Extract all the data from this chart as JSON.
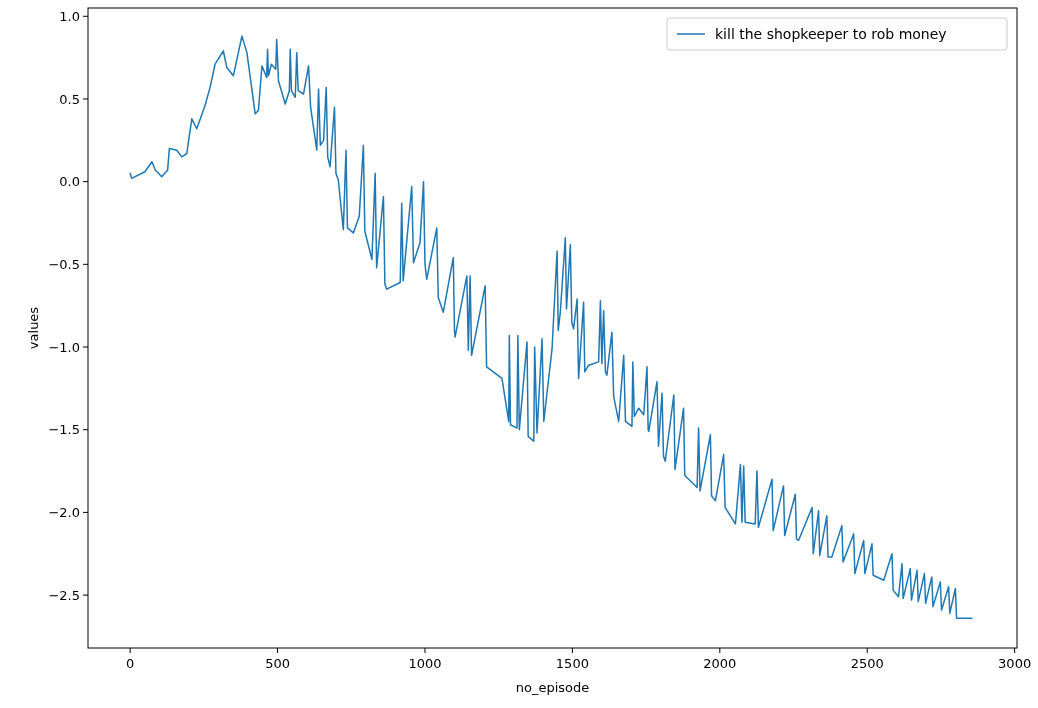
{
  "chart_data": {
    "type": "line",
    "xlabel": "no_episode",
    "ylabel": "values",
    "xlim": [
      -143,
      3008
    ],
    "ylim": [
      -2.82,
      1.05
    ],
    "xticks": [
      0,
      500,
      1000,
      1500,
      2000,
      2500,
      3000
    ],
    "yticks": [
      {
        "value": -2.5,
        "label": "−2.5"
      },
      {
        "value": -2.0,
        "label": "−2.0"
      },
      {
        "value": -1.5,
        "label": "−1.5"
      },
      {
        "value": -1.0,
        "label": "−1.0"
      },
      {
        "value": -0.5,
        "label": "−0.5"
      },
      {
        "value": 0,
        "label": "0.0"
      },
      {
        "value": 0.5,
        "label": "0.5"
      },
      {
        "value": 1.0,
        "label": "1.0"
      }
    ],
    "grid": false,
    "legend": "top right",
    "line_style": "solid",
    "series": [
      {
        "name": "kill the shopkeeper to rob money",
        "color": "#1f77b4",
        "x": [
          0,
          5,
          50,
          74,
          85,
          107,
          127,
          133,
          158,
          175,
          192,
          209,
          226,
          254,
          271,
          288,
          316,
          328,
          350,
          379,
          396,
          424,
          435,
          447,
          463,
          466,
          469,
          479,
          494,
          497,
          503,
          526,
          540,
          543,
          547,
          560,
          565,
          570,
          588,
          605,
          612,
          633,
          639,
          645,
          656,
          665,
          670,
          678,
          693,
          698,
          706,
          723,
          732,
          737,
          757,
          777,
          791,
          796,
          820,
          831,
          836,
          859,
          864,
          870,
          916,
          921,
          926,
          955,
          961,
          983,
          995,
          1000,
          1006,
          1040,
          1045,
          1062,
          1096,
          1100,
          1102,
          1142,
          1147,
          1153,
          1158,
          1204,
          1209,
          1261,
          1284,
          1286,
          1290,
          1312,
          1315,
          1320,
          1346,
          1350,
          1369,
          1372,
          1380,
          1397,
          1403,
          1431,
          1448,
          1452,
          1459,
          1476,
          1480,
          1493,
          1498,
          1504,
          1516,
          1521,
          1538,
          1542,
          1555,
          1589,
          1595,
          1600,
          1606,
          1612,
          1617,
          1634,
          1640,
          1657,
          1674,
          1680,
          1702,
          1705,
          1710,
          1725,
          1742,
          1753,
          1757,
          1759,
          1787,
          1792,
          1804,
          1809,
          1815,
          1844,
          1848,
          1877,
          1881,
          1883,
          1923,
          1928,
          1933,
          1968,
          1972,
          1985,
          2013,
          2018,
          2053,
          2070,
          2075,
          2081,
          2086,
          2120,
          2126,
          2131,
          2177,
          2181,
          2216,
          2220,
          2256,
          2260,
          2267,
          2313,
          2317,
          2335,
          2339,
          2363,
          2367,
          2380,
          2414,
          2418,
          2454,
          2458,
          2488,
          2492,
          2516,
          2520,
          2556,
          2584,
          2588,
          2606,
          2618,
          2622,
          2646,
          2650,
          2669,
          2673,
          2694,
          2698,
          2719,
          2723,
          2748,
          2752,
          2776,
          2780,
          2799,
          2803,
          2855
        ],
        "values": [
          0.05,
          0.02,
          0.06,
          0.12,
          0.07,
          0.03,
          0.07,
          0.2,
          0.19,
          0.15,
          0.17,
          0.38,
          0.32,
          0.46,
          0.57,
          0.71,
          0.79,
          0.69,
          0.64,
          0.88,
          0.78,
          0.41,
          0.43,
          0.7,
          0.63,
          0.8,
          0.64,
          0.71,
          0.68,
          0.86,
          0.61,
          0.47,
          0.55,
          0.8,
          0.55,
          0.51,
          0.78,
          0.55,
          0.53,
          0.7,
          0.45,
          0.19,
          0.56,
          0.22,
          0.25,
          0.57,
          0.15,
          0.09,
          0.45,
          0.05,
          0.01,
          -0.29,
          0.19,
          -0.28,
          -0.31,
          -0.21,
          0.22,
          -0.3,
          -0.47,
          0.05,
          -0.52,
          -0.09,
          -0.62,
          -0.65,
          -0.61,
          -0.13,
          -0.6,
          -0.03,
          -0.49,
          -0.37,
          0.0,
          -0.5,
          -0.59,
          -0.28,
          -0.7,
          -0.79,
          -0.46,
          -0.9,
          -0.94,
          -0.57,
          -1.02,
          -0.57,
          -1.05,
          -0.63,
          -1.12,
          -1.19,
          -1.45,
          -0.93,
          -1.47,
          -1.49,
          -0.93,
          -1.5,
          -0.97,
          -1.54,
          -1.57,
          -1.0,
          -1.52,
          -0.95,
          -1.45,
          -1.01,
          -0.42,
          -0.9,
          -0.79,
          -0.34,
          -0.77,
          -0.38,
          -0.85,
          -0.89,
          -0.71,
          -1.19,
          -0.73,
          -1.15,
          -1.11,
          -1.09,
          -0.72,
          -1.1,
          -0.78,
          -1.15,
          -1.17,
          -0.91,
          -1.3,
          -1.45,
          -1.05,
          -1.45,
          -1.48,
          -1.09,
          -1.42,
          -1.37,
          -1.41,
          -1.12,
          -1.5,
          -1.51,
          -1.21,
          -1.6,
          -1.28,
          -1.66,
          -1.69,
          -1.29,
          -1.74,
          -1.37,
          -1.77,
          -1.78,
          -1.85,
          -1.49,
          -1.87,
          -1.53,
          -1.9,
          -1.93,
          -1.65,
          -1.97,
          -2.07,
          -1.71,
          -2.06,
          -1.72,
          -2.06,
          -2.07,
          -1.75,
          -2.09,
          -1.8,
          -2.11,
          -1.84,
          -2.14,
          -1.89,
          -2.16,
          -2.17,
          -1.97,
          -2.25,
          -1.99,
          -2.26,
          -2.02,
          -2.27,
          -2.27,
          -2.08,
          -2.3,
          -2.13,
          -2.37,
          -2.17,
          -2.37,
          -2.19,
          -2.38,
          -2.41,
          -2.25,
          -2.47,
          -2.51,
          -2.31,
          -2.52,
          -2.34,
          -2.53,
          -2.35,
          -2.54,
          -2.37,
          -2.55,
          -2.39,
          -2.57,
          -2.42,
          -2.59,
          -2.45,
          -2.61,
          -2.46,
          -2.64,
          -2.64
        ]
      }
    ]
  }
}
